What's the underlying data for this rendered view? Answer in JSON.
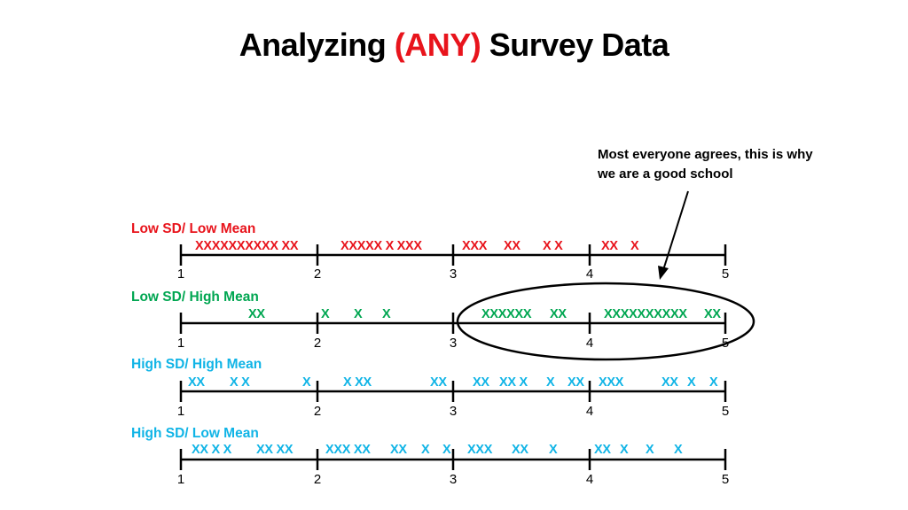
{
  "title": {
    "prefix": "Analyzing ",
    "highlight": "(ANY)",
    "suffix": " Survey Data"
  },
  "callout": {
    "text": "Most everyone agrees, this is why we are a good school"
  },
  "colors": {
    "red": "#e8141c",
    "green": "#00a651",
    "blue": "#10b4e6",
    "black": "#000000"
  },
  "tick_labels": [
    "1",
    "2",
    "3",
    "4",
    "5"
  ],
  "rows": [
    {
      "label": "Low SD/ Low Mean",
      "color": "#e8141c",
      "marks": [
        "XXXXXXXXXX XX",
        "XXXXX X XXX",
        "XXX",
        "XX",
        "X X",
        "XX",
        "X"
      ]
    },
    {
      "label": "Low SD/ High Mean",
      "color": "#00a651",
      "marks": [
        "XX",
        "X",
        "X",
        "X",
        "XXXXXX",
        "XX",
        "XXXXXXXXXX",
        "XX"
      ]
    },
    {
      "label": "High SD/ High Mean",
      "color": "#10b4e6",
      "marks": [
        "XX",
        "X X",
        "X",
        "X XX",
        "XX",
        "XX",
        "XX X",
        "X",
        "XX",
        "XXX",
        "XX",
        "X",
        "X"
      ]
    },
    {
      "label": "High SD/ Low Mean",
      "color": "#10b4e6",
      "marks": [
        "XX X X",
        "XX XX",
        "XXX XX",
        "XX",
        "X",
        "X",
        "XXX",
        "XX",
        "X",
        "XX",
        "X",
        "X",
        "X"
      ]
    }
  ]
}
